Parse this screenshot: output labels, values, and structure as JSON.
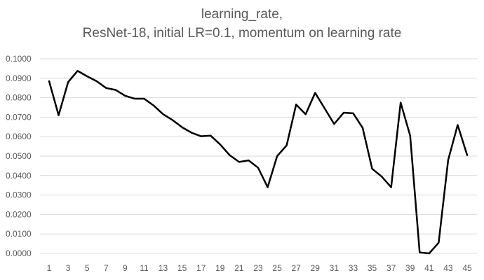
{
  "chart_data": {
    "type": "line",
    "title": [
      "learning_rate,",
      "ResNet-18, initial LR=0.1, momentum on learning rate"
    ],
    "xlabel": "",
    "ylabel": "",
    "ylim": [
      0,
      0.1
    ],
    "grid": true,
    "legend": "none",
    "y_ticks": [
      0,
      0.01,
      0.02,
      0.03,
      0.04,
      0.05,
      0.06,
      0.07,
      0.08,
      0.09,
      0.1
    ],
    "y_tick_labels": [
      "0.0000",
      "0.0100",
      "0.0200",
      "0.0300",
      "0.0400",
      "0.0500",
      "0.0600",
      "0.0700",
      "0.0800",
      "0.0900",
      "0.1000"
    ],
    "x_tick_labels": [
      "1",
      "3",
      "5",
      "7",
      "9",
      "11",
      "13",
      "15",
      "17",
      "19",
      "21",
      "23",
      "25",
      "27",
      "29",
      "31",
      "33",
      "35",
      "37",
      "39",
      "41",
      "43",
      "45"
    ],
    "x": [
      1,
      2,
      3,
      4,
      5,
      6,
      7,
      8,
      9,
      10,
      11,
      12,
      13,
      14,
      15,
      16,
      17,
      18,
      19,
      20,
      21,
      22,
      23,
      24,
      25,
      26,
      27,
      28,
      29,
      30,
      31,
      32,
      33,
      34,
      35,
      36,
      37,
      38,
      39,
      40,
      41,
      42,
      43,
      44,
      45
    ],
    "series": [
      {
        "color": "#000000",
        "values": [
          0.0885,
          0.071,
          0.088,
          0.0938,
          0.091,
          0.0885,
          0.085,
          0.084,
          0.081,
          0.0795,
          0.0795,
          0.076,
          0.0715,
          0.0685,
          0.0648,
          0.062,
          0.0602,
          0.0605,
          0.056,
          0.0505,
          0.047,
          0.0478,
          0.044,
          0.034,
          0.05,
          0.0555,
          0.0765,
          0.0715,
          0.0825,
          0.0745,
          0.0665,
          0.0723,
          0.072,
          0.0645,
          0.0435,
          0.0395,
          0.034,
          0.0775,
          0.0605,
          0.0005,
          0.0,
          0.0055,
          0.048,
          0.066,
          0.0505
        ]
      }
    ]
  }
}
